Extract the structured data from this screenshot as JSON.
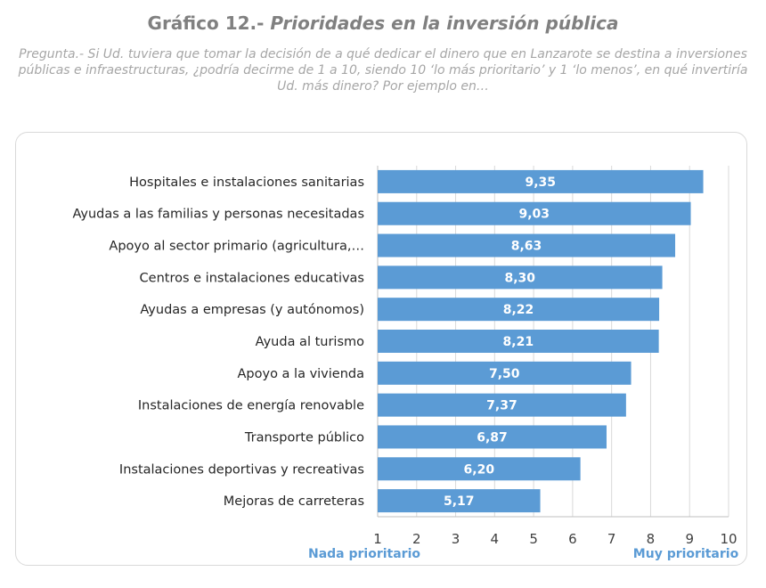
{
  "header": {
    "title_prefix": "Gráfico 12.- ",
    "title_main": "Prioridades en la inversión pública",
    "question": "Pregunta.- Si Ud. tuviera que tomar la decisión de a qué dedicar el dinero que en Lanzarote se destina a inversiones públicas e infraestructuras, ¿podría decirme de 1 a 10, siendo 10 ‘lo más prioritario’ y 1 ‘lo menos’, en qué invertiría Ud. más dinero? Por ejemplo en…"
  },
  "colors": {
    "bar": "#5b9bd5",
    "grid": "#d9d9d9",
    "axis": "#bfbfbf",
    "scale_label": "#5b9bd5"
  },
  "chart_data": {
    "type": "bar",
    "orientation": "horizontal",
    "categories": [
      "Hospitales e instalaciones sanitarias",
      "Ayudas a las familias y personas necesitadas",
      "Apoyo al sector primario (agricultura,…",
      "Centros e instalaciones educativas",
      "Ayudas a empresas (y autónomos)",
      "Ayuda al turismo",
      "Apoyo a la vivienda",
      "Instalaciones de energía renovable",
      "Transporte público",
      "Instalaciones deportivas y recreativas",
      "Mejoras de carreteras"
    ],
    "values": [
      9.35,
      9.03,
      8.63,
      8.3,
      8.22,
      8.21,
      7.5,
      7.37,
      6.87,
      6.2,
      5.17
    ],
    "value_labels": [
      "9,35",
      "9,03",
      "8,63",
      "8,30",
      "8,22",
      "8,21",
      "7,50",
      "7,37",
      "6,87",
      "6,20",
      "5,17"
    ],
    "xlim": [
      1,
      10
    ],
    "xticks": [
      "1",
      "2",
      "3",
      "4",
      "5",
      "6",
      "7",
      "8",
      "9",
      "10"
    ],
    "x_min_label": "Nada prioritario",
    "x_max_label": "Muy prioritario",
    "grid": true,
    "legend": "none"
  }
}
